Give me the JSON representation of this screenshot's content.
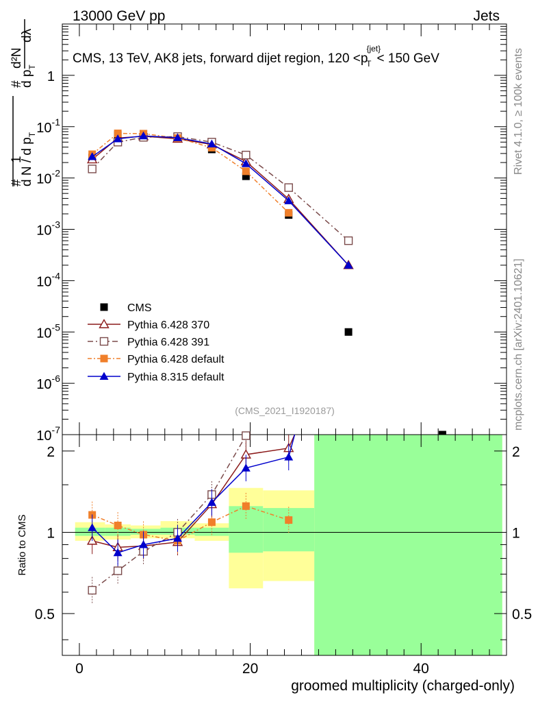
{
  "header": {
    "left": "13000 GeV pp",
    "right": "Jets"
  },
  "side_labels": {
    "top": "Rivet 4.1.0, ≥ 100k events",
    "bottom": "mcplots.cern.ch [arXiv:2401.10621]"
  },
  "chart_data": [
    {
      "type": "scatter",
      "panel": "main",
      "title": "CMS, 13 TeV, AK8 jets, forward dijet region, 120 <p{jet}T< 150 GeV",
      "title_parts": {
        "pre": "CMS, 13 TeV, AK8 jets, forward dijet region, 120 <p",
        "sup": "{jet}",
        "sub": "T",
        "post": "< 150 GeV"
      },
      "ylabel": "# 1/(d N / d pT) # d²N/(d pT dλ)",
      "ylabel_parts": {
        "hash": "#",
        "one": "1",
        "den": "d N / d p",
        "sub": "T",
        "num2": "d²N",
        "den2": "d p",
        "dl": "dλ"
      },
      "xlim": [
        -2,
        50
      ],
      "ylim_log10": [
        -7,
        1
      ],
      "y_ticks": [
        "10",
        "10",
        "10",
        "10",
        "10",
        "10",
        "10",
        "1"
      ],
      "y_exps": [
        "-7",
        "-6",
        "-5",
        "-4",
        "-3",
        "-2",
        "-1",
        ""
      ],
      "annotation": "(CMS_2021_I1920187)",
      "legend": [
        "CMS",
        "Pythia 6.428 370",
        "Pythia 6.428 391",
        "Pythia 6.428 default",
        "Pythia 8.315 default"
      ],
      "series": [
        {
          "name": "CMS",
          "color": "#000000",
          "marker": "square-filled",
          "x": [
            1.5,
            4.5,
            7.5,
            11.5,
            15.5,
            19.5,
            24.5,
            31.5,
            42.5
          ],
          "y": [
            0.025,
            0.069,
            0.073,
            0.064,
            0.036,
            0.0108,
            0.0019,
            1e-05,
            1e-07
          ]
        },
        {
          "name": "Pythia 6.428 370",
          "color": "#8b1a1a",
          "marker": "triangle-open",
          "x": [
            1.5,
            4.5,
            7.5,
            11.5,
            15.5,
            19.5,
            24.5,
            31.5
          ],
          "y": [
            0.023,
            0.06,
            0.065,
            0.058,
            0.045,
            0.021,
            0.0039,
            0.0002
          ]
        },
        {
          "name": "Pythia 6.428 391",
          "color": "#7a4a4a",
          "marker": "square-open",
          "x": [
            1.5,
            4.5,
            7.5,
            11.5,
            15.5,
            19.5,
            24.5,
            31.5
          ],
          "y": [
            0.015,
            0.05,
            0.062,
            0.064,
            0.05,
            0.028,
            0.0065,
            0.0006
          ]
        },
        {
          "name": "Pythia 6.428 default",
          "color": "#f07f2a",
          "marker": "square-filled",
          "x": [
            1.5,
            4.5,
            7.5,
            11.5,
            15.5,
            19.5,
            24.5
          ],
          "y": [
            0.029,
            0.074,
            0.073,
            0.06,
            0.039,
            0.0135,
            0.0021
          ]
        },
        {
          "name": "Pythia 8.315 default",
          "color": "#0000cc",
          "marker": "triangle-filled",
          "x": [
            1.5,
            4.5,
            7.5,
            11.5,
            15.5,
            19.5,
            24.5,
            31.5
          ],
          "y": [
            0.026,
            0.058,
            0.066,
            0.061,
            0.046,
            0.019,
            0.0036,
            0.0002
          ]
        }
      ]
    },
    {
      "type": "scatter",
      "panel": "ratio",
      "xlabel": "groomed multiplicity (charged-only)",
      "ylabel": "Ratio to CMS",
      "xlim": [
        -2,
        50
      ],
      "ylim_log": [
        0.35,
        2.3
      ],
      "x_ticks": [
        0,
        20,
        40
      ],
      "y_ticks": [
        0.5,
        1,
        2
      ],
      "bands": [
        {
          "x0": -0.5,
          "x1": 3,
          "yellow": [
            0.93,
            1.09
          ],
          "green": [
            0.97,
            1.04
          ]
        },
        {
          "x0": 3,
          "x1": 6,
          "yellow": [
            0.94,
            1.07
          ],
          "green": [
            0.97,
            1.04
          ]
        },
        {
          "x0": 6,
          "x1": 9.5,
          "yellow": [
            0.95,
            1.06
          ],
          "green": [
            0.98,
            1.03
          ]
        },
        {
          "x0": 9.5,
          "x1": 13.5,
          "yellow": [
            0.95,
            1.1
          ],
          "green": [
            0.98,
            1.04
          ]
        },
        {
          "x0": 13.5,
          "x1": 17.5,
          "yellow": [
            0.93,
            1.08
          ],
          "green": [
            0.97,
            1.04
          ]
        },
        {
          "x0": 17.5,
          "x1": 21.5,
          "yellow": [
            0.62,
            1.46
          ],
          "green": [
            0.84,
            1.25
          ]
        },
        {
          "x0": 21.5,
          "x1": 27.5,
          "yellow": [
            0.66,
            1.43
          ],
          "green": [
            0.85,
            1.23
          ]
        },
        {
          "x0": 27.5,
          "x1": 49.5,
          "yellow": [
            0.3,
            2.5
          ],
          "green": [
            0.3,
            2.5
          ]
        }
      ],
      "series": [
        {
          "name": "Pythia 6.428 370",
          "x": [
            1.5,
            4.5,
            7.5,
            11.5,
            15.5,
            19.5,
            24.5,
            25.2
          ],
          "y": [
            0.93,
            0.88,
            0.89,
            0.92,
            1.27,
            1.94,
            2.05,
            2.5
          ]
        },
        {
          "name": "Pythia 6.428 391",
          "x": [
            1.5,
            4.5,
            7.5,
            11.5,
            15.5,
            19.5
          ],
          "y": [
            0.61,
            0.72,
            0.85,
            1.0,
            1.38,
            2.28
          ]
        },
        {
          "name": "Pythia 6.428 default",
          "x": [
            1.5,
            4.5,
            7.5,
            11.5,
            15.5,
            19.5,
            24.5
          ],
          "y": [
            1.16,
            1.06,
            0.98,
            0.93,
            1.09,
            1.25,
            1.11
          ]
        },
        {
          "name": "Pythia 8.315 default",
          "x": [
            1.5,
            4.5,
            7.5,
            11.5,
            15.5,
            19.5,
            24.5,
            25.2
          ],
          "y": [
            1.04,
            0.84,
            0.9,
            0.95,
            1.29,
            1.73,
            1.9,
            2.5
          ]
        }
      ]
    }
  ]
}
